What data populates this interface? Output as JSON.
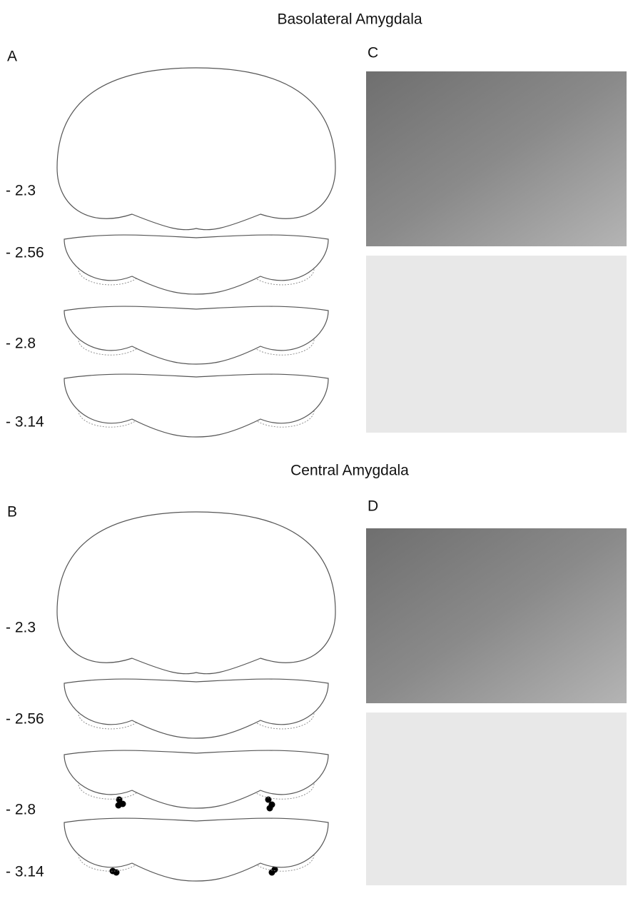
{
  "sections": [
    {
      "title": "Basolateral Amygdala",
      "left_label": "A",
      "right_label": "C",
      "levels": [
        "- 2.3",
        "- 2.56",
        "- 2.8",
        "- 3.14"
      ]
    },
    {
      "title": "Central Amygdala",
      "left_label": "B",
      "right_label": "D",
      "levels": [
        "- 2.3",
        "- 2.56",
        "- 2.8",
        "- 3.14"
      ]
    }
  ]
}
